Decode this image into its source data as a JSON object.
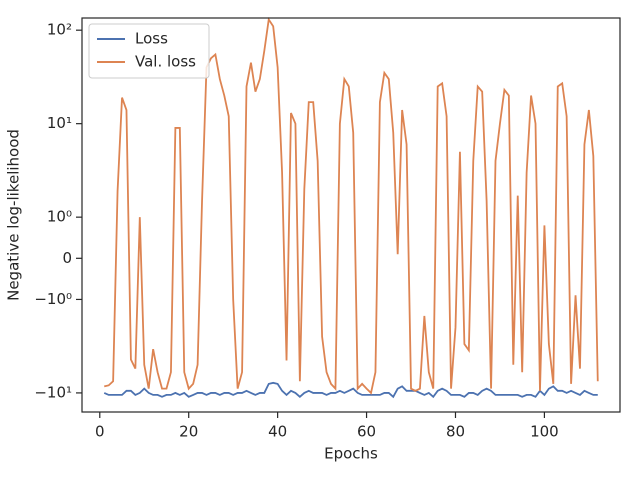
{
  "chart_data": {
    "type": "line",
    "yscale": "symlog",
    "xlabel": "Epochs",
    "ylabel": "Negative log-likelihood",
    "x": [
      1,
      2,
      3,
      4,
      5,
      6,
      7,
      8,
      9,
      10,
      11,
      12,
      13,
      14,
      15,
      16,
      17,
      18,
      19,
      20,
      21,
      22,
      23,
      24,
      25,
      26,
      27,
      28,
      29,
      30,
      31,
      32,
      33,
      34,
      35,
      36,
      37,
      38,
      39,
      40,
      41,
      42,
      43,
      44,
      45,
      46,
      47,
      48,
      49,
      50,
      51,
      52,
      53,
      54,
      55,
      56,
      57,
      58,
      59,
      60,
      61,
      62,
      63,
      64,
      65,
      66,
      67,
      68,
      69,
      70,
      71,
      72,
      73,
      74,
      75,
      76,
      77,
      78,
      79,
      80,
      81,
      82,
      83,
      84,
      85,
      86,
      87,
      88,
      89,
      90,
      91,
      92,
      93,
      94,
      95,
      96,
      97,
      98,
      99,
      100,
      101,
      102,
      103,
      104,
      105,
      106,
      107,
      108,
      109,
      110,
      111,
      112
    ],
    "series": [
      {
        "name": "Loss",
        "color": "#4c72b0",
        "values": [
          -10,
          -10.5,
          -10.5,
          -10.5,
          -10.5,
          -9.5,
          -9.5,
          -10.5,
          -10,
          -9,
          -10,
          -10.5,
          -10.5,
          -11,
          -10.5,
          -10.5,
          -10,
          -10.5,
          -10,
          -11,
          -10.5,
          -10,
          -10,
          -10.5,
          -10,
          -10,
          -10.5,
          -10,
          -10,
          -10.5,
          -10,
          -10,
          -9.5,
          -10,
          -10.5,
          -10,
          -10,
          -8,
          -7.8,
          -8,
          -9.5,
          -10.5,
          -9.5,
          -10,
          -11,
          -10,
          -9.5,
          -10,
          -10,
          -10,
          -10.5,
          -10,
          -10,
          -9.5,
          -10,
          -9.5,
          -9,
          -10,
          -10.5,
          -10.5,
          -10.5,
          -10.5,
          -10.5,
          -10,
          -10,
          -11,
          -9,
          -8.5,
          -9.5,
          -9.5,
          -9.5,
          -10,
          -10.5,
          -10,
          -11,
          -9.5,
          -9,
          -9.5,
          -10.5,
          -10.5,
          -10.5,
          -11,
          -10,
          -10,
          -10.5,
          -9.5,
          -9,
          -9.5,
          -10.5,
          -10.5,
          -10.5,
          -10.5,
          -10.5,
          -10.5,
          -11,
          -10.5,
          -10.5,
          -11,
          -9.5,
          -10.5,
          -9,
          -8.5,
          -9.5,
          -9.5,
          -10,
          -9.5,
          -10,
          -10.5,
          -9.5,
          -10,
          -10.5,
          -10.5
        ]
      },
      {
        "name": "Val. loss",
        "color": "#dd8452",
        "values": [
          -8.5,
          -8.3,
          -7.5,
          1.9,
          19,
          14,
          -4.4,
          -5.5,
          1,
          -5,
          -9,
          -3.4,
          -6,
          -9,
          -9,
          -6,
          9,
          9,
          -6,
          -9,
          -8,
          -5,
          1.5,
          40,
          50,
          55,
          30,
          20,
          12,
          -1,
          -9,
          -6,
          25,
          45,
          22,
          30,
          60,
          130,
          110,
          40,
          3,
          -4.5,
          13,
          10,
          -7.5,
          2,
          17,
          17,
          4,
          -2.5,
          -6,
          -8,
          -9,
          10,
          30,
          25,
          8,
          -9,
          -8,
          -9,
          -10,
          -6,
          17,
          35,
          30,
          8,
          0.1,
          14,
          6,
          -9,
          -9.5,
          -9,
          -1.5,
          -6,
          -9,
          25,
          27,
          12,
          -9,
          -2,
          5,
          -3,
          -3.5,
          4,
          25,
          22,
          1.5,
          -9,
          4,
          10,
          23,
          20,
          -5,
          1.7,
          -6,
          3,
          20,
          10,
          -9.5,
          0.8,
          -3,
          -8,
          25,
          27,
          12,
          -8,
          -0.9,
          -5.5,
          6,
          14,
          4.5,
          -7.5
        ]
      }
    ],
    "xlim": [
      -4,
      117
    ],
    "xticks": [
      0,
      20,
      40,
      60,
      80,
      100
    ],
    "ylim": [
      -16,
      135
    ],
    "yticks": [
      {
        "value": -10,
        "label": "−10¹"
      },
      {
        "value": -1,
        "label": "−10⁰"
      },
      0,
      {
        "value": 1,
        "label": "10⁰"
      },
      {
        "value": 10,
        "label": "10¹"
      },
      {
        "value": 100,
        "label": "10²"
      }
    ],
    "legend": "upper left",
    "grid": false
  }
}
